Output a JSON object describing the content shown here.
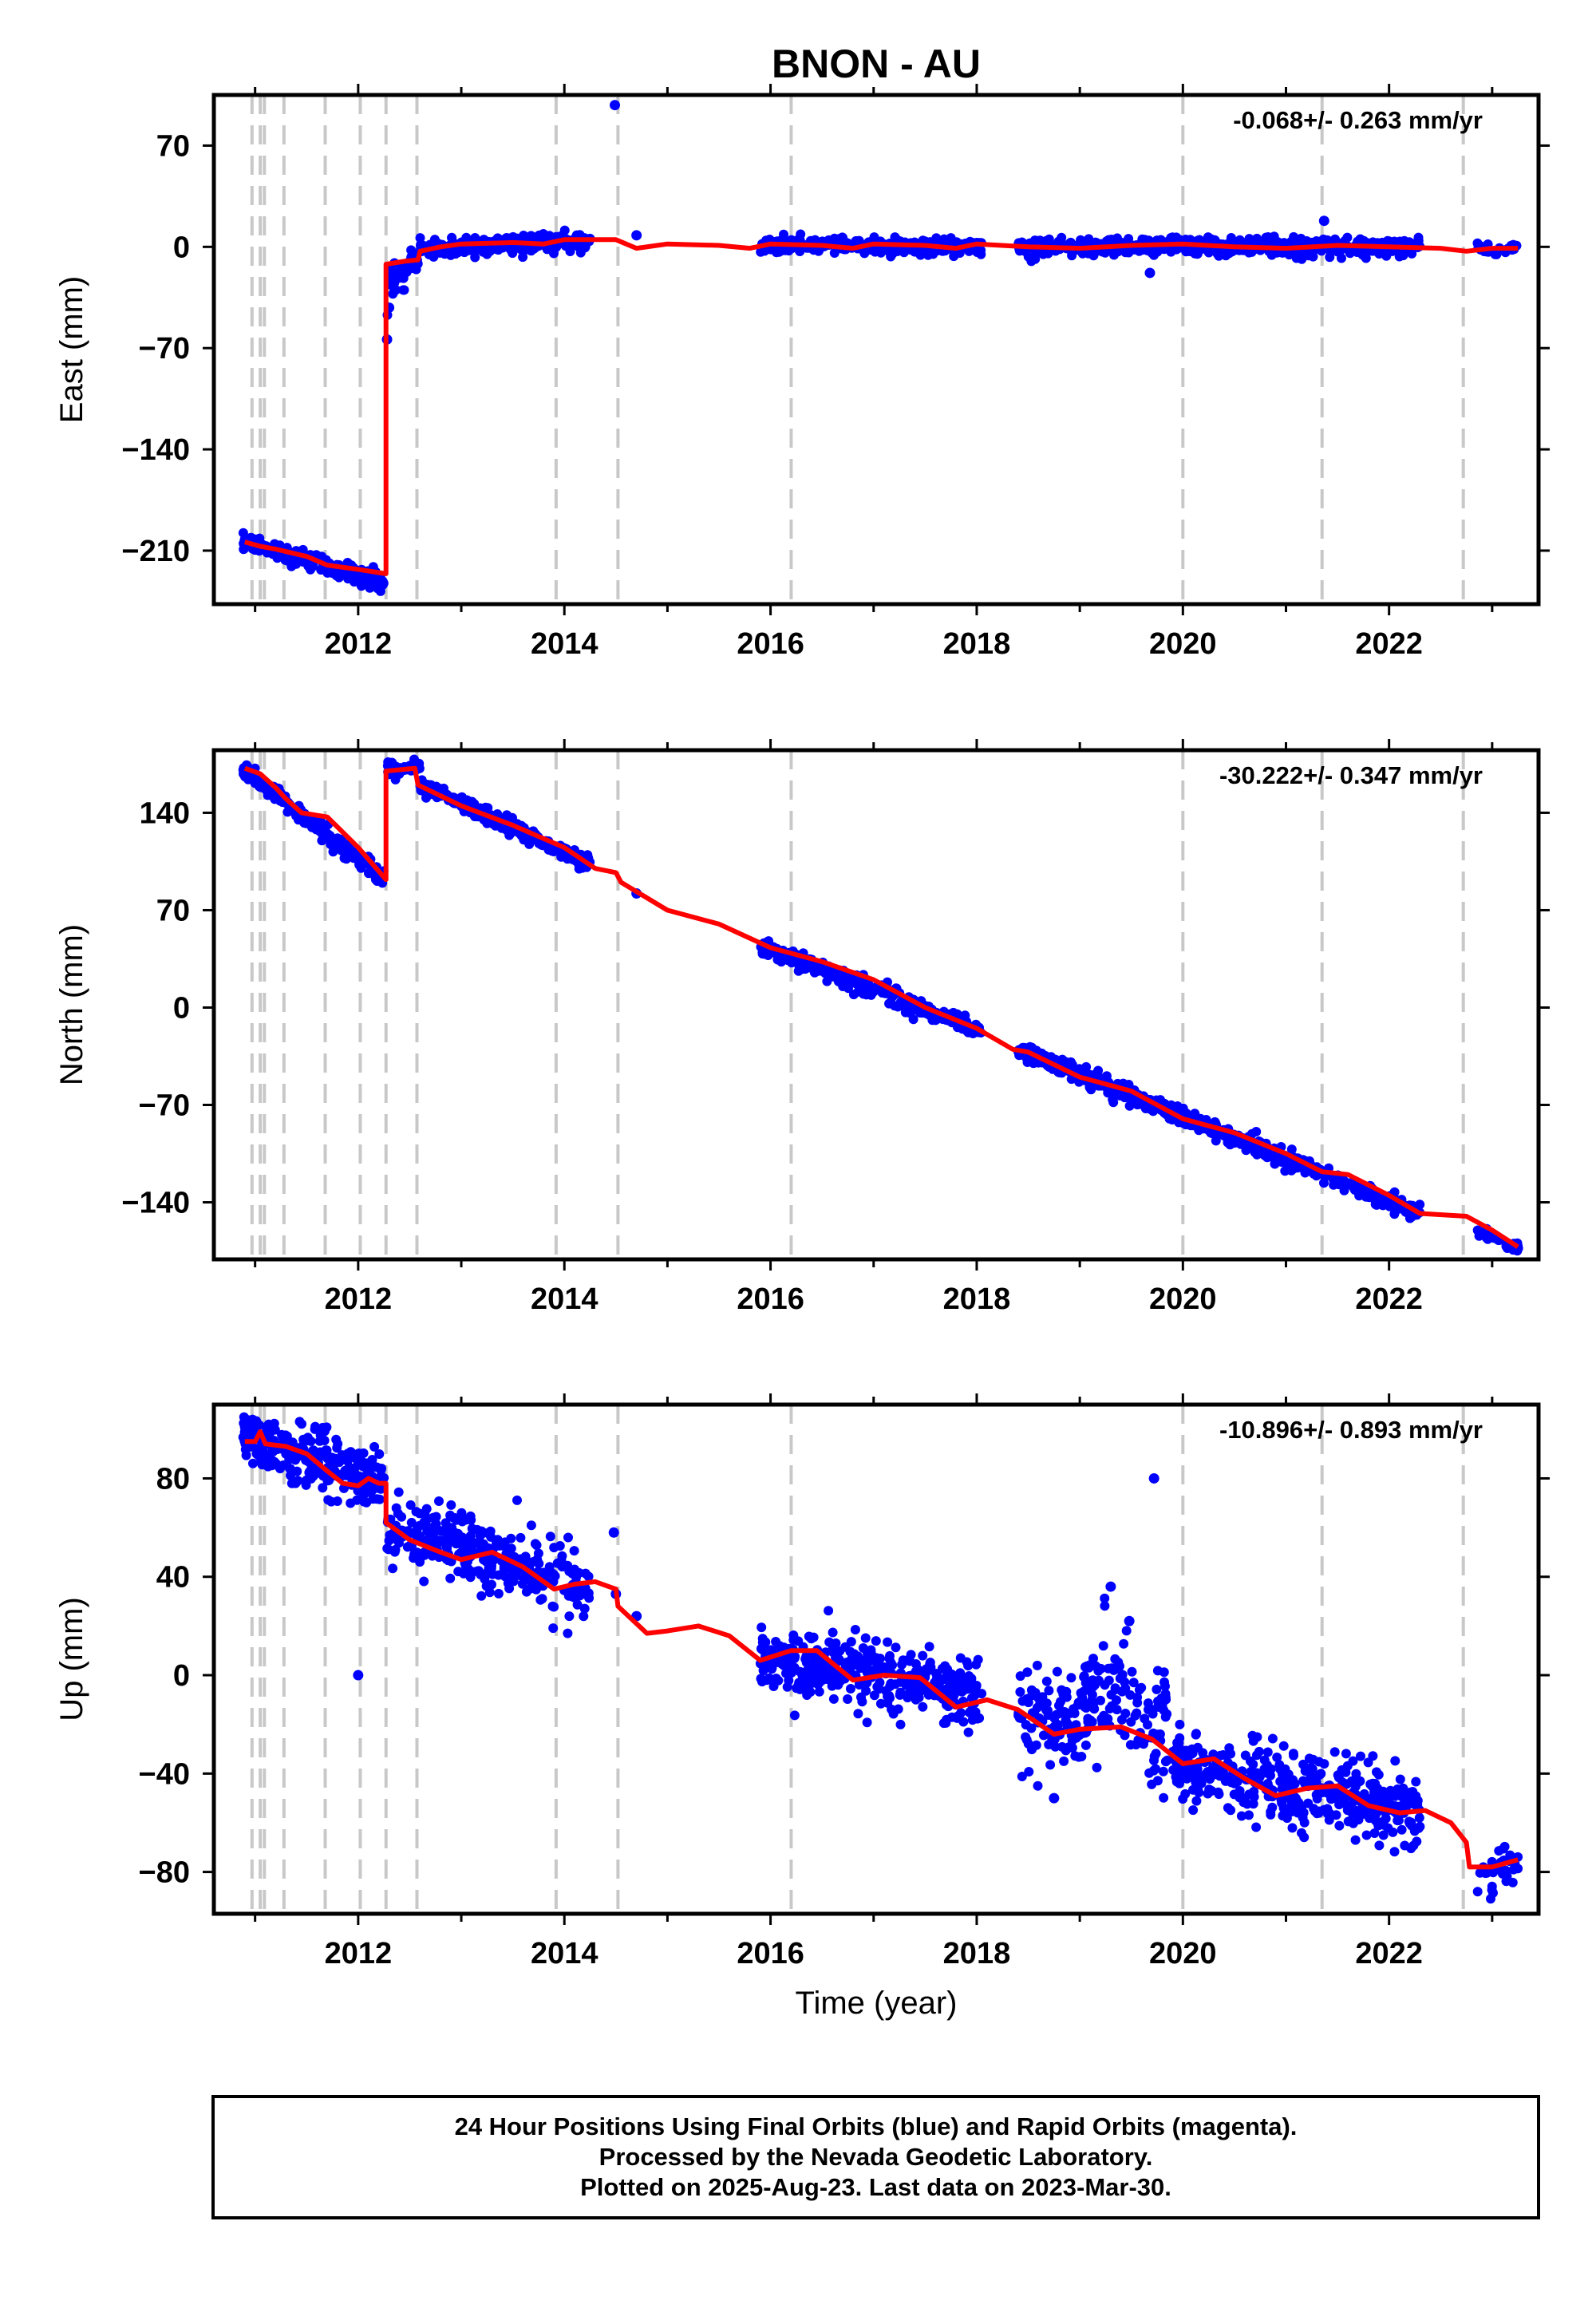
{
  "title": "BNON - AU",
  "chart_data": [
    {
      "type": "scatter",
      "ylabel": "East (mm)",
      "rate": "-0.068+/- 0.263 mm/yr",
      "xlim": [
        2010.6,
        2023.45
      ],
      "ylim": [
        -247,
        105
      ],
      "yticks": [
        70,
        0,
        -70,
        -140,
        -210
      ],
      "ytick_labels": [
        "70",
        "0",
        "−70",
        "−140",
        "−210"
      ],
      "xticks": [
        2012,
        2014,
        2016,
        2018,
        2020,
        2022
      ],
      "xtick_labels": [
        "2012",
        "2014",
        "2016",
        "2018",
        "2020",
        "2022"
      ],
      "model_line": [
        [
          2010.9,
          -204
        ],
        [
          2011.05,
          -207
        ],
        [
          2011.2,
          -209
        ],
        [
          2011.5,
          -214
        ],
        [
          2011.7,
          -220
        ],
        [
          2012.0,
          -223
        ],
        [
          2012.27,
          -226
        ],
        [
          2012.27,
          -12
        ],
        [
          2012.45,
          -10
        ],
        [
          2012.58,
          -9
        ],
        [
          2012.6,
          -3
        ],
        [
          2012.8,
          0
        ],
        [
          2013.0,
          2
        ],
        [
          2013.5,
          3
        ],
        [
          2013.8,
          2
        ],
        [
          2014.0,
          5
        ],
        [
          2014.5,
          5
        ],
        [
          2014.7,
          -1
        ],
        [
          2015.0,
          2
        ],
        [
          2015.5,
          1
        ],
        [
          2015.8,
          -1
        ],
        [
          2016.0,
          2
        ],
        [
          2016.5,
          1
        ],
        [
          2016.8,
          -1
        ],
        [
          2017.0,
          2
        ],
        [
          2017.5,
          1
        ],
        [
          2017.8,
          -1
        ],
        [
          2018.0,
          2
        ],
        [
          2018.5,
          0
        ],
        [
          2019.0,
          -1
        ],
        [
          2019.5,
          1
        ],
        [
          2020.0,
          2
        ],
        [
          2020.5,
          0
        ],
        [
          2021.0,
          -1
        ],
        [
          2021.5,
          1
        ],
        [
          2022.0,
          0
        ],
        [
          2022.5,
          -1
        ],
        [
          2022.75,
          -3
        ],
        [
          2023.0,
          -1
        ],
        [
          2023.25,
          -1
        ]
      ],
      "data_segments": [
        {
          "t0": 2010.88,
          "t1": 2012.25,
          "v0": -204,
          "v1": -232,
          "scatter": 3,
          "n": 220
        },
        {
          "t0": 2012.28,
          "t1": 2012.6,
          "v0": -30,
          "v1": -5,
          "scatter": 5,
          "n": 40
        },
        {
          "t0": 2012.6,
          "t1": 2014.25,
          "v0": -2,
          "v1": 4,
          "scatter": 3,
          "n": 260
        },
        {
          "t0": 2015.9,
          "t1": 2018.05,
          "v0": 1,
          "v1": 0,
          "scatter": 2.5,
          "n": 330
        },
        {
          "t0": 2018.4,
          "t1": 2022.3,
          "v0": 0,
          "v1": 0,
          "scatter": 3,
          "n": 600
        },
        {
          "t0": 2022.85,
          "t1": 2023.25,
          "v0": -1,
          "v1": -1,
          "scatter": 2,
          "n": 25
        }
      ],
      "outliers": [
        [
          2014.49,
          98
        ],
        [
          2014.7,
          8
        ],
        [
          2021.37,
          18
        ],
        [
          2019.68,
          -18
        ],
        [
          2012.28,
          -64
        ],
        [
          2012.3,
          -42
        ]
      ]
    },
    {
      "type": "scatter",
      "ylabel": "North (mm)",
      "rate": "-30.222+/- 0.347 mm/yr",
      "xlim": [
        2010.6,
        2023.45
      ],
      "ylim": [
        -181,
        185
      ],
      "yticks": [
        140,
        70,
        0,
        -70,
        -140
      ],
      "ytick_labels": [
        "140",
        "70",
        "0",
        "−70",
        "−140"
      ],
      "xticks": [
        2012,
        2014,
        2016,
        2018,
        2020,
        2022
      ],
      "xtick_labels": [
        "2012",
        "2014",
        "2016",
        "2018",
        "2020",
        "2022"
      ],
      "model_line": [
        [
          2010.9,
          172
        ],
        [
          2011.05,
          168
        ],
        [
          2011.2,
          158
        ],
        [
          2011.3,
          150
        ],
        [
          2011.45,
          140
        ],
        [
          2011.7,
          137
        ],
        [
          2011.85,
          126
        ],
        [
          2012.0,
          115
        ],
        [
          2012.27,
          92
        ],
        [
          2012.27,
          170
        ],
        [
          2012.55,
          172
        ],
        [
          2012.58,
          160
        ],
        [
          2013.0,
          145
        ],
        [
          2013.5,
          131
        ],
        [
          2014.0,
          115
        ],
        [
          2014.3,
          100
        ],
        [
          2014.5,
          97
        ],
        [
          2014.55,
          90
        ],
        [
          2015.0,
          70
        ],
        [
          2015.5,
          60
        ],
        [
          2016.0,
          43
        ],
        [
          2016.5,
          33
        ],
        [
          2017.0,
          20
        ],
        [
          2017.5,
          0
        ],
        [
          2018.0,
          -15
        ],
        [
          2018.35,
          -30
        ],
        [
          2018.5,
          -32
        ],
        [
          2019.0,
          -50
        ],
        [
          2019.5,
          -60
        ],
        [
          2020.0,
          -80
        ],
        [
          2020.5,
          -90
        ],
        [
          2021.0,
          -105
        ],
        [
          2021.35,
          -118
        ],
        [
          2021.6,
          -120
        ],
        [
          2022.0,
          -135
        ],
        [
          2022.3,
          -148
        ],
        [
          2022.75,
          -150
        ],
        [
          2023.0,
          -160
        ],
        [
          2023.25,
          -172
        ]
      ],
      "data_segments": [
        {
          "t0": 2010.88,
          "t1": 2012.25,
          "v0": 172,
          "v1": 92,
          "scatter": 3,
          "n": 220
        },
        {
          "t0": 2012.28,
          "t1": 2012.6,
          "v0": 171,
          "v1": 172,
          "scatter": 3,
          "n": 40
        },
        {
          "t0": 2012.6,
          "t1": 2014.25,
          "v0": 160,
          "v1": 103,
          "scatter": 3,
          "n": 260
        },
        {
          "t0": 2015.9,
          "t1": 2018.05,
          "v0": 45,
          "v1": -18,
          "scatter": 3,
          "n": 330
        },
        {
          "t0": 2018.4,
          "t1": 2022.3,
          "v0": -30,
          "v1": -148,
          "scatter": 3,
          "n": 600
        },
        {
          "t0": 2022.85,
          "t1": 2023.25,
          "v0": -160,
          "v1": -173,
          "scatter": 2,
          "n": 25
        }
      ],
      "outliers": [
        [
          2014.7,
          82
        ],
        [
          2023.25,
          -173
        ]
      ]
    },
    {
      "type": "scatter",
      "ylabel": "Up (mm)",
      "xlabel": "Time (year)",
      "rate": "-10.896+/- 0.893 mm/yr",
      "xlim": [
        2010.6,
        2023.45
      ],
      "ylim": [
        -97,
        110
      ],
      "yticks": [
        80,
        40,
        0,
        -40,
        -80
      ],
      "ytick_labels": [
        "80",
        "40",
        "0",
        "−40",
        "−80"
      ],
      "xticks": [
        2012,
        2014,
        2016,
        2018,
        2020,
        2022
      ],
      "xtick_labels": [
        "2012",
        "2014",
        "2016",
        "2018",
        "2020",
        "2022"
      ],
      "model_line": [
        [
          2010.9,
          95
        ],
        [
          2011.0,
          95
        ],
        [
          2011.05,
          99
        ],
        [
          2011.1,
          94
        ],
        [
          2011.3,
          93
        ],
        [
          2011.5,
          90
        ],
        [
          2011.7,
          83
        ],
        [
          2011.85,
          78
        ],
        [
          2012.0,
          77
        ],
        [
          2012.1,
          80
        ],
        [
          2012.2,
          78
        ],
        [
          2012.27,
          78
        ],
        [
          2012.27,
          62
        ],
        [
          2012.5,
          55
        ],
        [
          2012.8,
          50
        ],
        [
          2013.0,
          47
        ],
        [
          2013.3,
          50
        ],
        [
          2013.6,
          44
        ],
        [
          2013.9,
          35
        ],
        [
          2014.1,
          37
        ],
        [
          2014.3,
          38
        ],
        [
          2014.5,
          35
        ],
        [
          2014.52,
          28
        ],
        [
          2014.8,
          17
        ],
        [
          2015.0,
          18
        ],
        [
          2015.3,
          20
        ],
        [
          2015.6,
          16
        ],
        [
          2015.9,
          6
        ],
        [
          2016.2,
          10
        ],
        [
          2016.45,
          10
        ],
        [
          2016.8,
          -2
        ],
        [
          2017.1,
          0
        ],
        [
          2017.45,
          -1
        ],
        [
          2017.8,
          -13
        ],
        [
          2018.1,
          -10
        ],
        [
          2018.4,
          -14
        ],
        [
          2018.75,
          -24
        ],
        [
          2019.0,
          -22
        ],
        [
          2019.4,
          -21
        ],
        [
          2019.7,
          -26
        ],
        [
          2020.0,
          -36
        ],
        [
          2020.3,
          -34
        ],
        [
          2020.6,
          -42
        ],
        [
          2020.9,
          -49
        ],
        [
          2021.2,
          -46
        ],
        [
          2021.5,
          -45
        ],
        [
          2021.8,
          -53
        ],
        [
          2022.1,
          -56
        ],
        [
          2022.35,
          -55
        ],
        [
          2022.6,
          -60
        ],
        [
          2022.75,
          -68
        ],
        [
          2022.78,
          -78
        ],
        [
          2023.0,
          -78
        ],
        [
          2023.25,
          -75
        ]
      ],
      "data_segments": [
        {
          "t0": 2010.88,
          "t1": 2012.25,
          "v0": 96,
          "v1": 79,
          "scatter": 6,
          "n": 260
        },
        {
          "t0": 2012.28,
          "t1": 2014.25,
          "v0": 60,
          "v1": 36,
          "scatter": 7,
          "n": 320
        },
        {
          "t0": 2015.9,
          "t1": 2018.05,
          "v0": 8,
          "v1": -8,
          "scatter": 7,
          "n": 380
        },
        {
          "t0": 2018.4,
          "t1": 2019.85,
          "v0": -18,
          "v1": -22,
          "scatter": 10,
          "n": 230
        },
        {
          "t0": 2019.9,
          "t1": 2022.3,
          "v0": -36,
          "v1": -56,
          "scatter": 7,
          "n": 420
        },
        {
          "t0": 2022.85,
          "t1": 2023.25,
          "v0": -83,
          "v1": -75,
          "scatter": 5,
          "n": 30
        }
      ],
      "bumps": [
        {
          "t0": 2019.0,
          "t1": 2019.6,
          "add": 20
        }
      ],
      "outliers": [
        [
          2012.0,
          0
        ],
        [
          2014.48,
          58
        ],
        [
          2014.5,
          33
        ],
        [
          2014.7,
          24
        ],
        [
          2019.72,
          80
        ],
        [
          2018.75,
          -50
        ],
        [
          2019.3,
          36
        ],
        [
          2019.48,
          22
        ]
      ]
    }
  ],
  "footer": {
    "line1": "24 Hour Positions Using Final Orbits (blue) and Rapid Orbits (magenta).",
    "line2": "Processed by the Nevada Geodetic Laboratory.",
    "line3": "Plotted on 2025-Aug-23. Last data on 2023-Mar-30."
  },
  "colors": {
    "data": "#0000ff",
    "model": "#ff0000",
    "steps": "#c8c8c8",
    "frame": "#000000"
  },
  "step_times": [
    2010.97,
    2011.05,
    2011.09,
    2011.28,
    2011.68,
    2012.02,
    2012.27,
    2012.57,
    2013.92,
    2014.52,
    2016.2,
    2020.0,
    2021.35,
    2022.72
  ]
}
